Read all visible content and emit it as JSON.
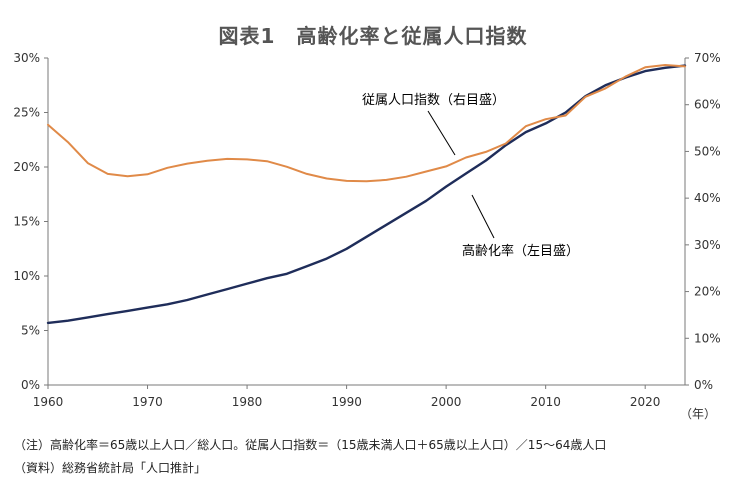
{
  "chart_data": {
    "type": "line",
    "title": "図表1　高齢化率と従属人口指数",
    "x_unit": "（年）",
    "xlim": [
      1960,
      2024
    ],
    "x_ticks": [
      1960,
      1970,
      1980,
      1990,
      2000,
      2010,
      2020
    ],
    "y_left": {
      "lim": [
        0,
        30
      ],
      "ticks": [
        "0%",
        "5%",
        "10%",
        "15%",
        "20%",
        "25%",
        "30%"
      ]
    },
    "y_right": {
      "lim": [
        0,
        70
      ],
      "ticks": [
        "0%",
        "10%",
        "20%",
        "30%",
        "40%",
        "50%",
        "60%",
        "70%"
      ]
    },
    "series": [
      {
        "name": "高齢化率（左目盛）",
        "axis": "left",
        "color": "#1f2d5a",
        "x": [
          1960,
          1962,
          1964,
          1966,
          1968,
          1970,
          1972,
          1974,
          1976,
          1978,
          1980,
          1982,
          1984,
          1986,
          1988,
          1990,
          1992,
          1994,
          1996,
          1998,
          2000,
          2002,
          2004,
          2006,
          2008,
          2010,
          2012,
          2014,
          2016,
          2018,
          2020,
          2022,
          2024
        ],
        "y": [
          5.7,
          5.9,
          6.2,
          6.5,
          6.8,
          7.1,
          7.4,
          7.8,
          8.3,
          8.8,
          9.3,
          9.8,
          10.2,
          10.9,
          11.6,
          12.5,
          13.6,
          14.7,
          15.8,
          16.9,
          18.2,
          19.4,
          20.6,
          22.0,
          23.2,
          24.0,
          25.0,
          26.5,
          27.5,
          28.2,
          28.8,
          29.1,
          29.3
        ]
      },
      {
        "name": "従属人口指数（右目盛）",
        "axis": "right",
        "color": "#e08a48",
        "x": [
          1960,
          1962,
          1964,
          1966,
          1968,
          1970,
          1972,
          1974,
          1976,
          1978,
          1980,
          1982,
          1984,
          1986,
          1988,
          1990,
          1992,
          1994,
          1996,
          1998,
          2000,
          2002,
          2004,
          2006,
          2008,
          2010,
          2012,
          2014,
          2016,
          2018,
          2020,
          2022,
          2024
        ],
        "y": [
          55.7,
          52.0,
          47.5,
          45.2,
          44.7,
          45.1,
          46.5,
          47.4,
          48.0,
          48.4,
          48.3,
          47.9,
          46.7,
          45.2,
          44.2,
          43.7,
          43.6,
          43.9,
          44.6,
          45.7,
          46.8,
          48.7,
          49.9,
          51.7,
          55.4,
          56.9,
          57.7,
          61.7,
          63.5,
          66.0,
          68.0,
          68.5,
          68.2
        ]
      }
    ],
    "annotations": [
      "従属人口指数（右目盛）",
      "高齢化率（左目盛）"
    ]
  },
  "notes": [
    "（注）高齢化率＝65歳以上人口／総人口。従属人口指数＝（15歳未満人口＋65歳以上人口）／15～64歳人口",
    "（資料）総務省統計局「人口推計」"
  ]
}
